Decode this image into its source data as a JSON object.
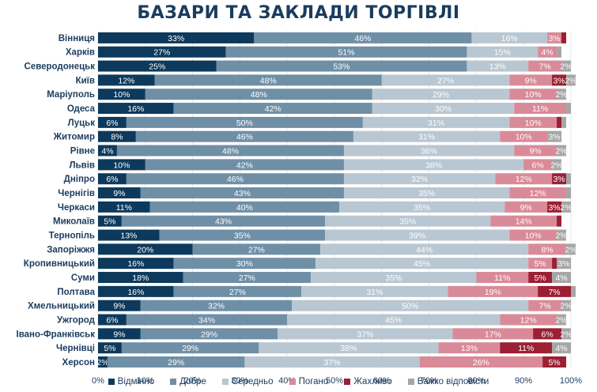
{
  "chart_data": {
    "type": "bar",
    "orientation": "horizontal",
    "stacked": true,
    "title": "БАЗАРИ ТА ЗАКЛАДИ ТОРГІВЛІ",
    "categories": [
      "Вінниця",
      "Харків",
      "Северодонецьк",
      "Київ",
      "Маріуполь",
      "Одеса",
      "Луцьк",
      "Житомир",
      "Рівне",
      "Львів",
      "Дніпро",
      "Чернігів",
      "Черкаси",
      "Миколаїв",
      "Тернопіль",
      "Запоріжжя",
      "Кропивницький",
      "Суми",
      "Полтава",
      "Хмельницький",
      "Ужгород",
      "Івано-Франківськ",
      "Чернівці",
      "Херсон"
    ],
    "series": [
      {
        "name": "Відмінно",
        "color": "#0d3a5c",
        "values": [
          33,
          27,
          25,
          12,
          10,
          16,
          6,
          8,
          4,
          10,
          6,
          9,
          11,
          5,
          13,
          20,
          16,
          18,
          16,
          9,
          6,
          9,
          5,
          2
        ]
      },
      {
        "name": "Добре",
        "color": "#6f8fa6",
        "values": [
          46,
          51,
          53,
          48,
          48,
          42,
          50,
          46,
          48,
          42,
          46,
          43,
          40,
          43,
          35,
          27,
          30,
          27,
          27,
          32,
          34,
          29,
          29,
          29
        ]
      },
      {
        "name": "Середньо",
        "color": "#b9c7d2",
        "values": [
          16,
          15,
          13,
          27,
          29,
          30,
          31,
          31,
          36,
          38,
          32,
          35,
          35,
          35,
          39,
          44,
          45,
          35,
          31,
          50,
          45,
          37,
          38,
          37
        ]
      },
      {
        "name": "Погано",
        "color": "#d98a98",
        "values": [
          3,
          4,
          7,
          9,
          10,
          11,
          10,
          10,
          9,
          6,
          12,
          12,
          9,
          14,
          10,
          8,
          5,
          11,
          19,
          7,
          12,
          17,
          13,
          26
        ]
      },
      {
        "name": "Жахливо",
        "color": "#9c1f33",
        "values": [
          1,
          0,
          0,
          3,
          0,
          0,
          1,
          0,
          0,
          0,
          3,
          0,
          3,
          1,
          0,
          0,
          1,
          5,
          7,
          0,
          0,
          6,
          11,
          5
        ]
      },
      {
        "name": "Важко відповісти",
        "color": "#a6a6a6",
        "values": [
          0,
          1,
          2,
          2,
          2,
          1,
          1,
          3,
          2,
          2,
          1,
          1,
          2,
          0,
          2,
          2,
          3,
          4,
          1,
          2,
          2,
          2,
          4,
          0
        ]
      }
    ],
    "x_ticks": [
      "0%",
      "10%",
      "20%",
      "30%",
      "40%",
      "50%",
      "60%",
      "70%",
      "80%",
      "90%",
      "100%"
    ],
    "xlim": [
      0,
      100
    ],
    "legend_position": "bottom"
  }
}
